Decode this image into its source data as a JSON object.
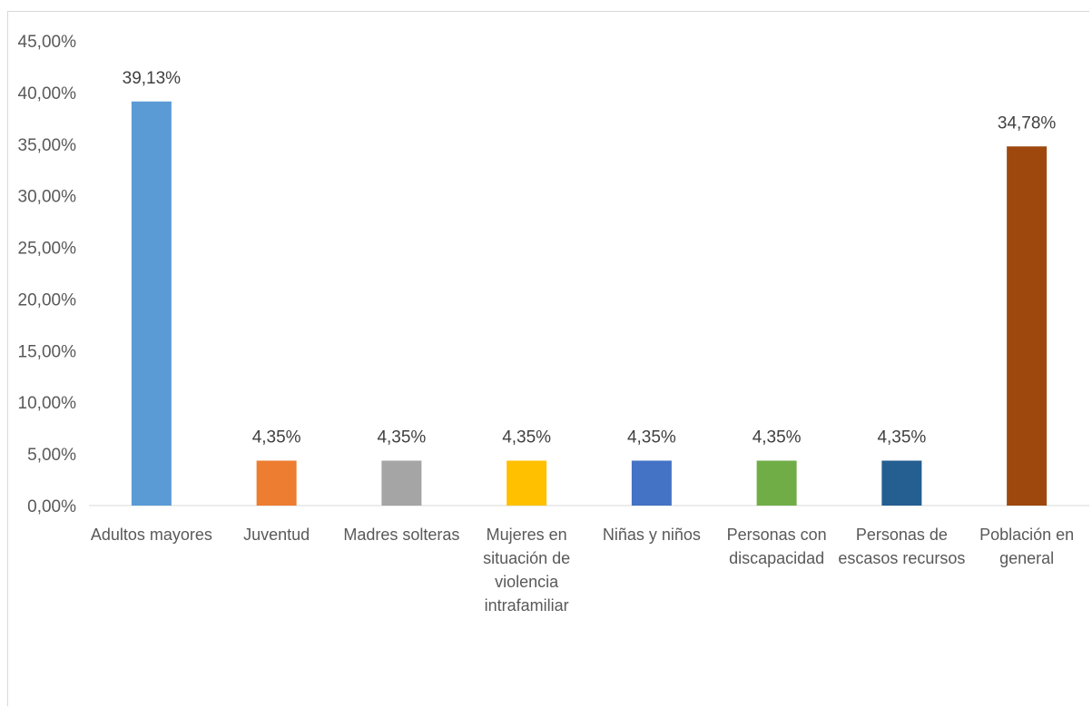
{
  "chart_data": {
    "type": "bar",
    "title": "",
    "xlabel": "",
    "ylabel": "",
    "ylim": [
      0,
      45
    ],
    "y_ticks": [
      "0,00%",
      "5,00%",
      "10,00%",
      "15,00%",
      "20,00%",
      "25,00%",
      "30,00%",
      "35,00%",
      "40,00%",
      "45,00%"
    ],
    "grid": false,
    "legend": "none",
    "categories": [
      [
        "Adultos mayores"
      ],
      [
        "Juventud"
      ],
      [
        "Madres solteras"
      ],
      [
        "Mujeres en",
        "situación de",
        "violencia",
        "intrafamiliar"
      ],
      [
        "Niñas y niños"
      ],
      [
        "Personas con",
        "discapacidad"
      ],
      [
        "Personas de",
        "escasos recursos"
      ],
      [
        "Población en",
        "general"
      ]
    ],
    "values": [
      39.13,
      4.35,
      4.35,
      4.35,
      4.35,
      4.35,
      4.35,
      34.78
    ],
    "data_labels": [
      "39,13%",
      "4,35%",
      "4,35%",
      "4,35%",
      "4,35%",
      "4,35%",
      "4,35%",
      "34,78%"
    ],
    "colors": [
      "#5b9bd5",
      "#ed7d31",
      "#a5a5a5",
      "#ffc000",
      "#4472c4",
      "#70ad47",
      "#255e91",
      "#9e480e"
    ]
  }
}
